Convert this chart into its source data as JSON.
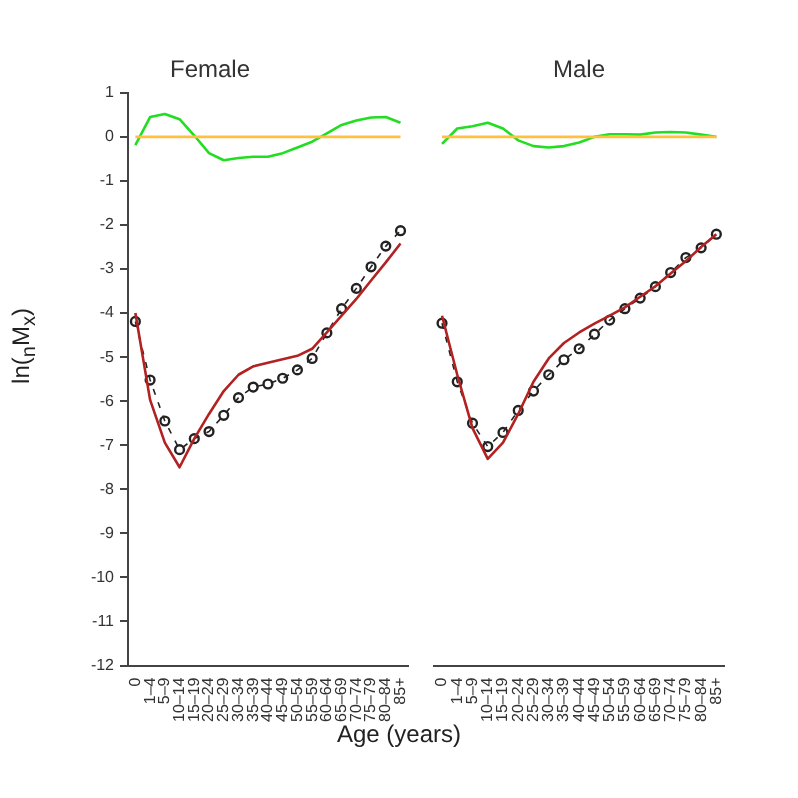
{
  "chart_data": [
    {
      "type": "line",
      "title": "Female",
      "ylabel": "ln($_{n}$M$_{x}$)",
      "xlabel": "Age (years)",
      "legend": false,
      "grid": false,
      "categories": [
        "0",
        "1–4",
        "5–9",
        "10–14",
        "15–19",
        "20–24",
        "25–29",
        "30–34",
        "35–39",
        "40–44",
        "45–49",
        "50–54",
        "55–59",
        "60–64",
        "65–69",
        "70–74",
        "75–79",
        "80–84",
        "85+"
      ],
      "ylim": [
        -12,
        1
      ],
      "yticks": [
        1,
        0,
        -1,
        -2,
        -3,
        -4,
        -5,
        -6,
        -7,
        -8,
        -9,
        -10,
        -11,
        -12
      ],
      "series": [
        {
          "color": "#ffbf40",
          "marker": "none",
          "line_style": "solid",
          "values": [
            0,
            0,
            0,
            0,
            0,
            0,
            0,
            0,
            0,
            0,
            0,
            0,
            0,
            0,
            0,
            0,
            0,
            0,
            0
          ]
        },
        {
          "color": "#22dd22",
          "marker": "none",
          "line_style": "solid",
          "values": [
            -0.19,
            0.45,
            0.52,
            0.4,
            0.03,
            -0.37,
            -0.53,
            -0.48,
            -0.45,
            -0.45,
            -0.37,
            -0.24,
            -0.11,
            0.08,
            0.27,
            0.37,
            0.44,
            0.45,
            0.32
          ]
        },
        {
          "color": "#b22222",
          "marker": "none",
          "line_style": "solid",
          "values": [
            -4.0,
            -5.97,
            -6.94,
            -7.5,
            -6.85,
            -6.29,
            -5.77,
            -5.4,
            -5.21,
            -5.13,
            -5.05,
            -4.97,
            -4.81,
            -4.44,
            -4.06,
            -3.68,
            -3.26,
            -2.85,
            -2.42
          ]
        },
        {
          "color": "#222222",
          "marker": "circle",
          "line_style": "dashed",
          "values": [
            -4.19,
            -5.52,
            -6.45,
            -7.1,
            -6.85,
            -6.69,
            -6.32,
            -5.92,
            -5.68,
            -5.61,
            -5.48,
            -5.29,
            -5.03,
            -4.45,
            -3.9,
            -3.44,
            -2.95,
            -2.48,
            -2.13
          ]
        }
      ]
    },
    {
      "type": "line",
      "title": "Male",
      "legend": false,
      "grid": false,
      "tick_labels": "x",
      "categories": [
        "0",
        "1–4",
        "5–9",
        "10–14",
        "15–19",
        "20–24",
        "25–29",
        "30–34",
        "35–39",
        "40–44",
        "45–49",
        "50–54",
        "55–59",
        "60–64",
        "65–69",
        "70–74",
        "75–79",
        "80–84",
        "85+"
      ],
      "ylim": [
        -12,
        1
      ],
      "series": [
        {
          "color": "#ffbf40",
          "marker": "none",
          "line_style": "solid",
          "values": [
            0,
            0,
            0,
            0,
            0,
            0,
            0,
            0,
            0,
            0,
            0,
            0,
            0,
            0,
            0,
            0,
            0,
            0,
            0
          ]
        },
        {
          "color": "#22dd22",
          "marker": "none",
          "line_style": "solid",
          "values": [
            -0.16,
            0.19,
            0.24,
            0.32,
            0.19,
            -0.08,
            -0.21,
            -0.24,
            -0.21,
            -0.13,
            0,
            0.06,
            0.06,
            0.05,
            0.1,
            0.11,
            0.1,
            0.05,
            0
          ]
        },
        {
          "color": "#b22222",
          "marker": "none",
          "line_style": "solid",
          "values": [
            -4.06,
            -5.4,
            -6.61,
            -7.31,
            -6.94,
            -6.29,
            -5.56,
            -5.03,
            -4.68,
            -4.44,
            -4.24,
            -4.06,
            -3.87,
            -3.63,
            -3.39,
            -3.1,
            -2.82,
            -2.5,
            -2.21
          ]
        },
        {
          "color": "#222222",
          "marker": "circle",
          "line_style": "dashed",
          "values": [
            -4.23,
            -5.56,
            -6.5,
            -7.03,
            -6.71,
            -6.21,
            -5.77,
            -5.4,
            -5.06,
            -4.81,
            -4.48,
            -4.16,
            -3.9,
            -3.66,
            -3.4,
            -3.08,
            -2.74,
            -2.52,
            -2.21
          ]
        }
      ]
    }
  ]
}
